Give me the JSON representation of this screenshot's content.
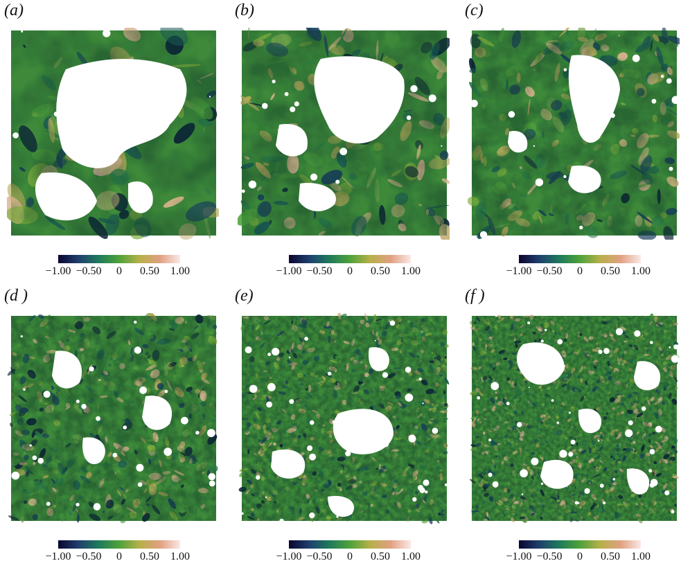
{
  "figure": {
    "panels": [
      {
        "label": "(a)",
        "style": "a"
      },
      {
        "label": "(b)",
        "style": "b"
      },
      {
        "label": "(c)",
        "style": "c"
      },
      {
        "label": "(d )",
        "style": "d"
      },
      {
        "label": "(e)",
        "style": "e"
      },
      {
        "label": "(f )",
        "style": "f"
      }
    ],
    "colorbar": {
      "ticks": [
        "−1.00",
        "−0.50",
        "0",
        "0.50",
        "1.00"
      ],
      "colors": [
        "#0a0630",
        "#1f3f6e",
        "#1f7a5c",
        "#4ea23a",
        "#b7b04a",
        "#e0a080",
        "#fbe8e6"
      ]
    }
  }
}
